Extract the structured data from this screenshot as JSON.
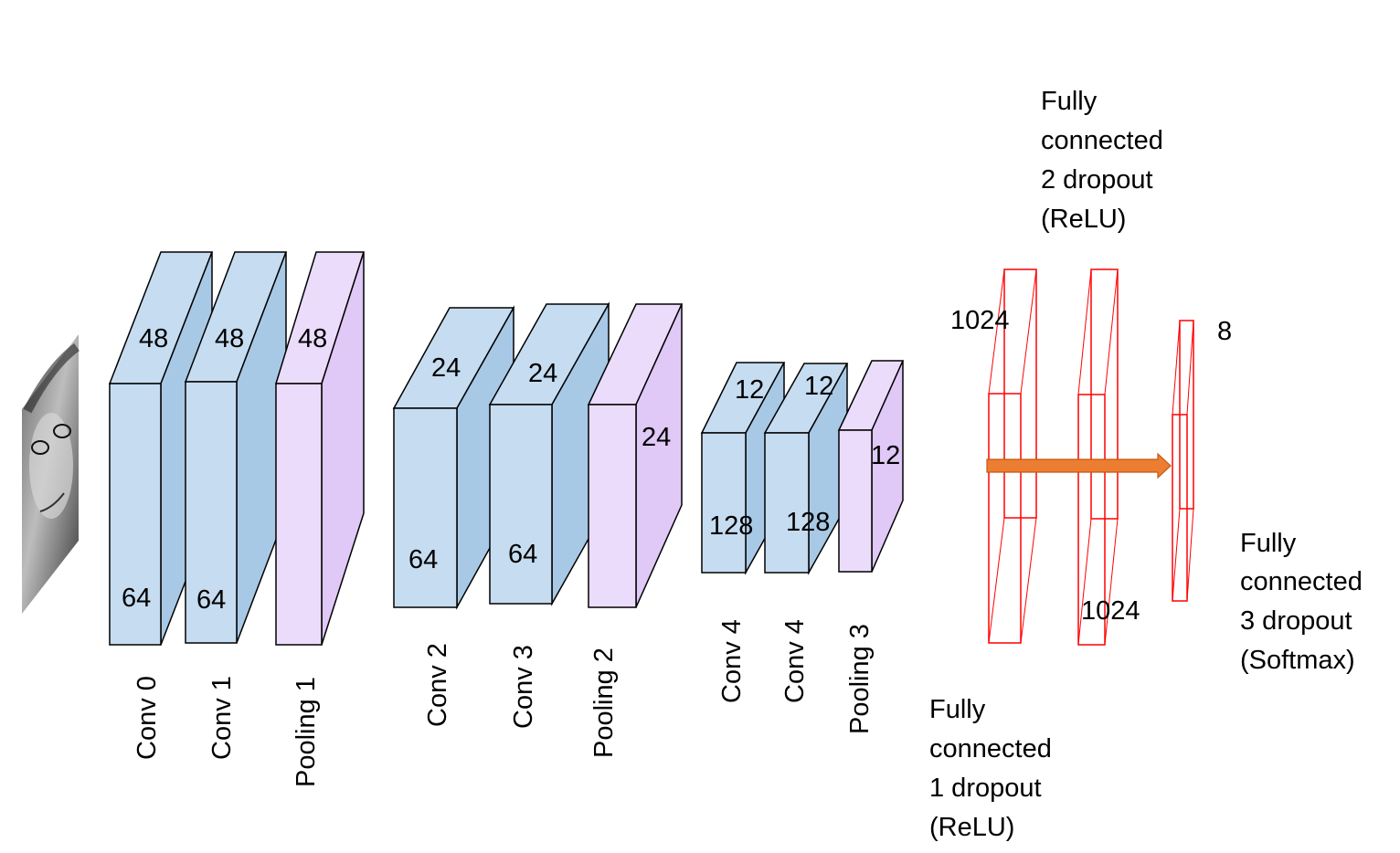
{
  "colors": {
    "conv_fill": "#c6dcf0",
    "conv_side": "#a8c9e6",
    "pool_fill": "#ecdcfb",
    "pool_side": "#e0c8f7",
    "outline": "#000000",
    "fc_outline": "#ff0000",
    "arrow": "#ed7d31",
    "arrow_outline": "#c05a14"
  },
  "input": {
    "icon": "face-photo-icon"
  },
  "blocks": {
    "conv0": {
      "label": "Conv 0",
      "top": "48",
      "bottom": "64"
    },
    "conv1": {
      "label": "Conv 1",
      "top": "48",
      "bottom": "64"
    },
    "pool1": {
      "label": "Pooling 1",
      "top": "48"
    },
    "conv2": {
      "label": "Conv 2",
      "top": "24",
      "bottom": "64"
    },
    "conv3": {
      "label": "Conv 3",
      "top": "24",
      "bottom": "64"
    },
    "pool2": {
      "label": "Pooling 2",
      "side": "24"
    },
    "conv4a": {
      "label": "Conv 4",
      "top": "12",
      "bottom": "128"
    },
    "conv4b": {
      "label": "Conv 4",
      "top": "12",
      "bottom": "128"
    },
    "pool3": {
      "label": "Pooling 3",
      "side": "12"
    }
  },
  "fc": {
    "fc1": {
      "size": "1024",
      "lines": [
        "Fully",
        "connected",
        "1 dropout",
        "(ReLU)"
      ]
    },
    "fc2": {
      "size": "1024",
      "lines": [
        "Fully",
        "connected",
        "2 dropout",
        "(ReLU)"
      ]
    },
    "fc3": {
      "size": "8",
      "lines": [
        "Fully",
        "connected",
        "3 dropout",
        "(Softmax)"
      ]
    }
  }
}
